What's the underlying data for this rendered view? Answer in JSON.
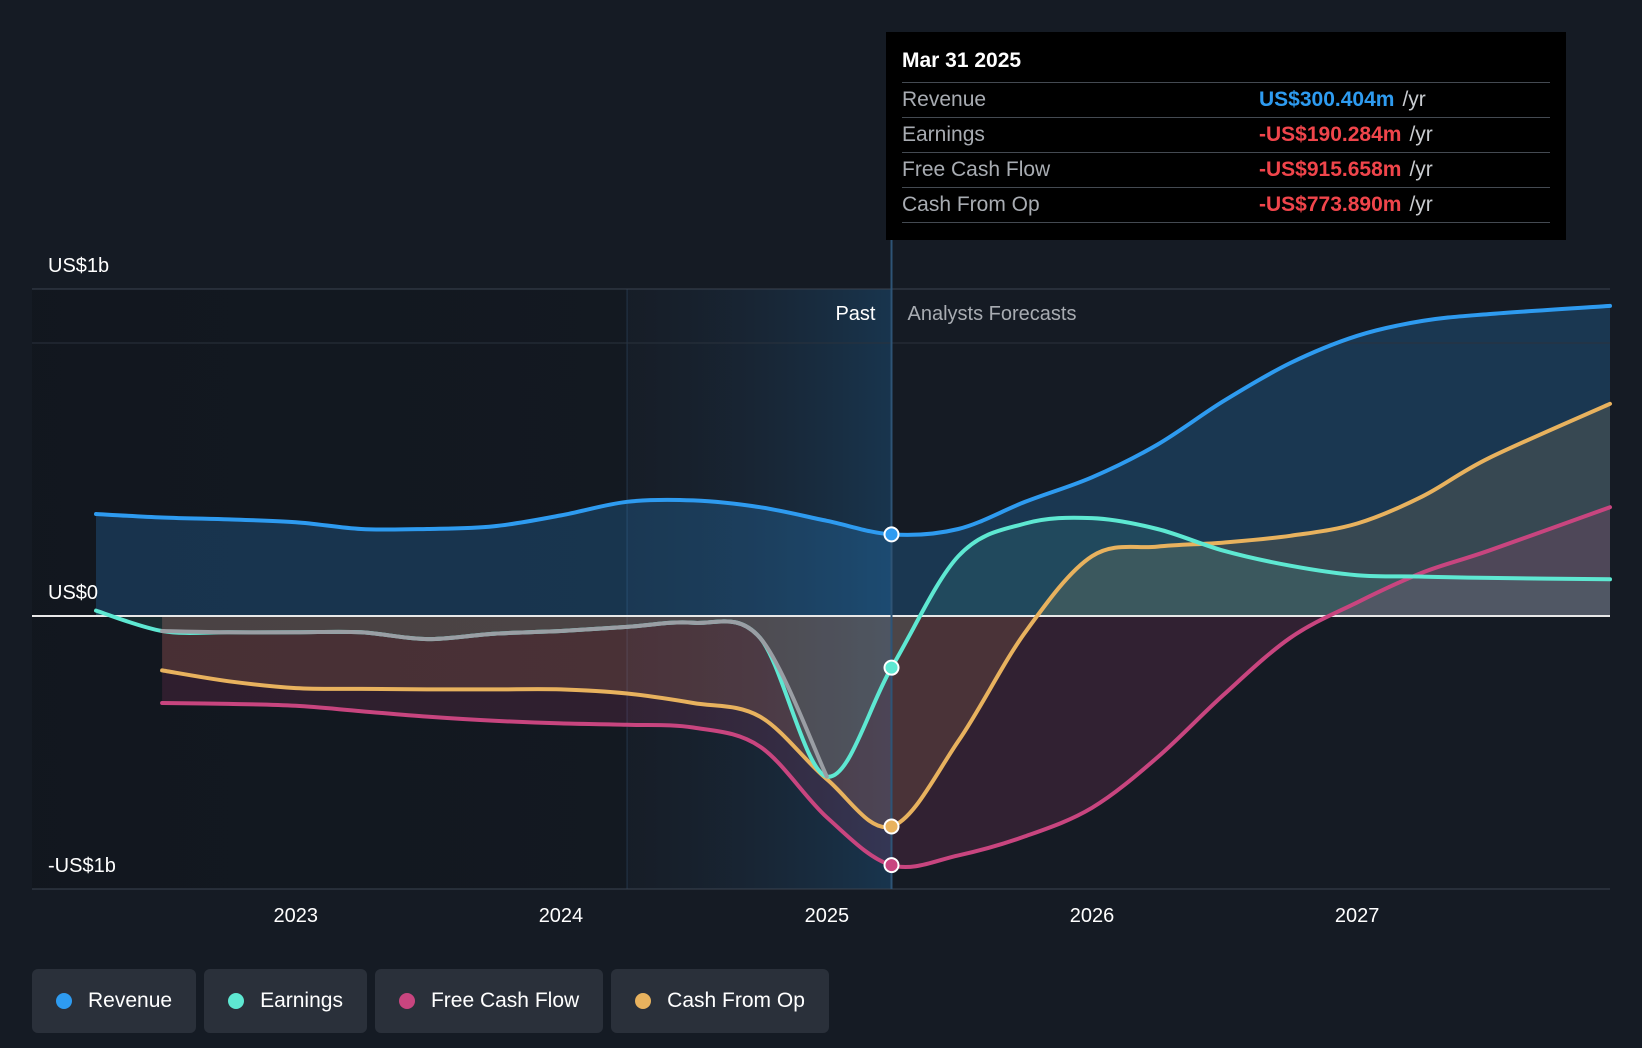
{
  "tooltip": {
    "date": "Mar 31 2025",
    "rows": [
      {
        "label": "Revenue",
        "value": "US$300.404m",
        "unit": "/yr",
        "color": "#2e9bf0"
      },
      {
        "label": "Earnings",
        "value": "-US$190.284m",
        "unit": "/yr",
        "color": "#f0454b"
      },
      {
        "label": "Free Cash Flow",
        "value": "-US$915.658m",
        "unit": "/yr",
        "color": "#f0454b"
      },
      {
        "label": "Cash From Op",
        "value": "-US$773.890m",
        "unit": "/yr",
        "color": "#f0454b"
      }
    ]
  },
  "legend": [
    {
      "label": "Revenue",
      "color": "#2e9bf0"
    },
    {
      "label": "Earnings",
      "color": "#5ee8d2"
    },
    {
      "label": "Free Cash Flow",
      "color": "#c8457f"
    },
    {
      "label": "Cash From Op",
      "color": "#e8b25e"
    }
  ],
  "chart_data": {
    "type": "line",
    "ylim": [
      -1000,
      1000
    ],
    "xlim": [
      "2022-04-01",
      "2027-12-15"
    ],
    "y_tick_labels": [
      "US$1b",
      "US$0",
      "-US$1b"
    ],
    "x_tick_labels": [
      "2023",
      "2024",
      "2025",
      "2026",
      "2027"
    ],
    "past_label": "Past",
    "forecast_label": "Analysts Forecasts",
    "divider_date": "2025-03-31",
    "series": [
      {
        "name": "Revenue",
        "color": "#2e9bf0",
        "points": [
          [
            "2022-04-01",
            375
          ],
          [
            "2022-07-01",
            362
          ],
          [
            "2022-10-01",
            355
          ],
          [
            "2023-01-01",
            345
          ],
          [
            "2023-04-01",
            320
          ],
          [
            "2023-07-01",
            320
          ],
          [
            "2023-10-01",
            330
          ],
          [
            "2024-01-01",
            370
          ],
          [
            "2024-04-01",
            420
          ],
          [
            "2024-07-01",
            425
          ],
          [
            "2024-10-01",
            400
          ],
          [
            "2025-01-01",
            350
          ],
          [
            "2025-03-31",
            300
          ],
          [
            "2025-07-01",
            320
          ],
          [
            "2025-10-01",
            420
          ],
          [
            "2026-01-01",
            510
          ],
          [
            "2026-04-01",
            630
          ],
          [
            "2026-07-01",
            790
          ],
          [
            "2026-10-01",
            930
          ],
          [
            "2027-01-01",
            1030
          ],
          [
            "2027-04-01",
            1085
          ],
          [
            "2027-07-01",
            1110
          ],
          [
            "2027-12-15",
            1140
          ]
        ]
      },
      {
        "name": "Earnings",
        "color": "#5ee8d2",
        "points": [
          [
            "2022-04-01",
            20
          ],
          [
            "2022-07-01",
            -55
          ],
          [
            "2022-10-01",
            -60
          ],
          [
            "2023-01-01",
            -60
          ],
          [
            "2023-04-01",
            -60
          ],
          [
            "2023-07-01",
            -85
          ],
          [
            "2023-10-01",
            -65
          ],
          [
            "2024-01-01",
            -55
          ],
          [
            "2024-04-01",
            -40
          ],
          [
            "2024-07-01",
            -25
          ],
          [
            "2024-10-01",
            -80
          ],
          [
            "2025-01-01",
            -590
          ],
          [
            "2025-03-31",
            -190
          ],
          [
            "2025-07-01",
            220
          ],
          [
            "2025-10-01",
            340
          ],
          [
            "2026-01-01",
            360
          ],
          [
            "2026-04-01",
            320
          ],
          [
            "2026-07-01",
            240
          ],
          [
            "2026-10-01",
            185
          ],
          [
            "2027-01-01",
            150
          ],
          [
            "2027-04-01",
            145
          ],
          [
            "2027-07-01",
            140
          ],
          [
            "2027-12-15",
            135
          ]
        ]
      },
      {
        "name": "Free Cash Flow",
        "color": "#c8457f",
        "points": [
          [
            "2022-07-01",
            -320
          ],
          [
            "2022-10-01",
            -323
          ],
          [
            "2023-01-01",
            -330
          ],
          [
            "2023-04-01",
            -350
          ],
          [
            "2023-07-01",
            -370
          ],
          [
            "2023-10-01",
            -385
          ],
          [
            "2024-01-01",
            -395
          ],
          [
            "2024-04-01",
            -400
          ],
          [
            "2024-07-01",
            -410
          ],
          [
            "2024-10-01",
            -480
          ],
          [
            "2025-01-01",
            -740
          ],
          [
            "2025-03-31",
            -916
          ],
          [
            "2025-07-01",
            -880
          ],
          [
            "2025-10-01",
            -810
          ],
          [
            "2026-01-01",
            -705
          ],
          [
            "2026-04-01",
            -520
          ],
          [
            "2026-07-01",
            -290
          ],
          [
            "2026-10-01",
            -80
          ],
          [
            "2027-01-01",
            50
          ],
          [
            "2027-04-01",
            160
          ],
          [
            "2027-07-01",
            240
          ],
          [
            "2027-12-15",
            400
          ]
        ]
      },
      {
        "name": "Cash From Op",
        "color": "#e8b25e",
        "points": [
          [
            "2022-07-01",
            -200
          ],
          [
            "2022-10-01",
            -240
          ],
          [
            "2023-01-01",
            -265
          ],
          [
            "2023-04-01",
            -268
          ],
          [
            "2023-07-01",
            -270
          ],
          [
            "2023-10-01",
            -270
          ],
          [
            "2024-01-01",
            -270
          ],
          [
            "2024-04-01",
            -285
          ],
          [
            "2024-07-01",
            -320
          ],
          [
            "2024-10-01",
            -370
          ],
          [
            "2025-01-01",
            -600
          ],
          [
            "2025-03-31",
            -774
          ],
          [
            "2025-07-01",
            -460
          ],
          [
            "2025-10-01",
            -60
          ],
          [
            "2026-01-01",
            220
          ],
          [
            "2026-04-01",
            255
          ],
          [
            "2026-07-01",
            270
          ],
          [
            "2026-10-01",
            295
          ],
          [
            "2027-01-01",
            340
          ],
          [
            "2027-04-01",
            440
          ],
          [
            "2027-07-01",
            580
          ],
          [
            "2027-12-15",
            780
          ]
        ]
      }
    ]
  }
}
